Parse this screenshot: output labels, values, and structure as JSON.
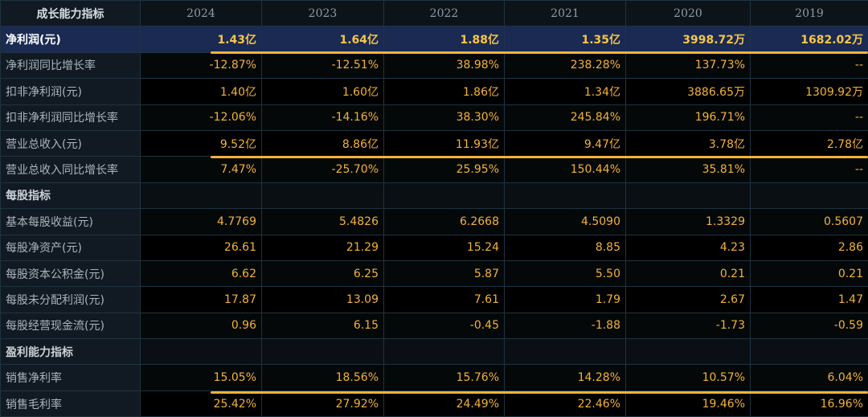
{
  "table": {
    "header": {
      "title": "成长能力指标",
      "years": [
        "2024",
        "2023",
        "2022",
        "2021",
        "2020",
        "2019"
      ]
    },
    "rows": [
      {
        "label": "净利润(元)",
        "values": [
          "1.43亿",
          "1.64亿",
          "1.88亿",
          "1.35亿",
          "3998.72万",
          "1682.02万"
        ]
      },
      {
        "label": "净利润同比增长率",
        "values": [
          "-12.87%",
          "-12.51%",
          "38.98%",
          "238.28%",
          "137.73%",
          "--"
        ]
      },
      {
        "label": "扣非净利润(元)",
        "values": [
          "1.40亿",
          "1.60亿",
          "1.86亿",
          "1.34亿",
          "3886.65万",
          "1309.92万"
        ]
      },
      {
        "label": "扣非净利润同比增长率",
        "values": [
          "-12.06%",
          "-14.16%",
          "38.30%",
          "245.84%",
          "196.71%",
          "--"
        ]
      },
      {
        "label": "营业总收入(元)",
        "values": [
          "9.52亿",
          "8.86亿",
          "11.93亿",
          "9.47亿",
          "3.78亿",
          "2.78亿"
        ]
      },
      {
        "label": "营业总收入同比增长率",
        "values": [
          "7.47%",
          "-25.70%",
          "25.95%",
          "150.44%",
          "35.81%",
          "--"
        ]
      },
      {
        "label": "每股指标",
        "values": [
          "",
          "",
          "",
          "",
          "",
          ""
        ]
      },
      {
        "label": "基本每股收益(元)",
        "values": [
          "4.7769",
          "5.4826",
          "6.2668",
          "4.5090",
          "1.3329",
          "0.5607"
        ]
      },
      {
        "label": "每股净资产(元)",
        "values": [
          "26.61",
          "21.29",
          "15.24",
          "8.85",
          "4.23",
          "2.86"
        ]
      },
      {
        "label": "每股资本公积金(元)",
        "values": [
          "6.62",
          "6.25",
          "5.87",
          "5.50",
          "0.21",
          "0.21"
        ]
      },
      {
        "label": "每股未分配利润(元)",
        "values": [
          "17.87",
          "13.09",
          "7.61",
          "1.79",
          "2.67",
          "1.47"
        ]
      },
      {
        "label": "每股经营现金流(元)",
        "values": [
          "0.96",
          "6.15",
          "-0.45",
          "-1.88",
          "-1.73",
          "-0.59"
        ]
      },
      {
        "label": "盈利能力指标",
        "values": [
          "",
          "",
          "",
          "",
          "",
          ""
        ]
      },
      {
        "label": "销售净利率",
        "values": [
          "15.05%",
          "18.56%",
          "15.76%",
          "14.28%",
          "10.57%",
          "6.04%"
        ]
      },
      {
        "label": "销售毛利率",
        "values": [
          "25.42%",
          "27.92%",
          "24.49%",
          "22.46%",
          "19.46%",
          "16.96%"
        ]
      }
    ]
  },
  "colors": {
    "accent": "#f2b23a",
    "highlight_row": "#1a2a52",
    "label_bg": "#111a22"
  }
}
